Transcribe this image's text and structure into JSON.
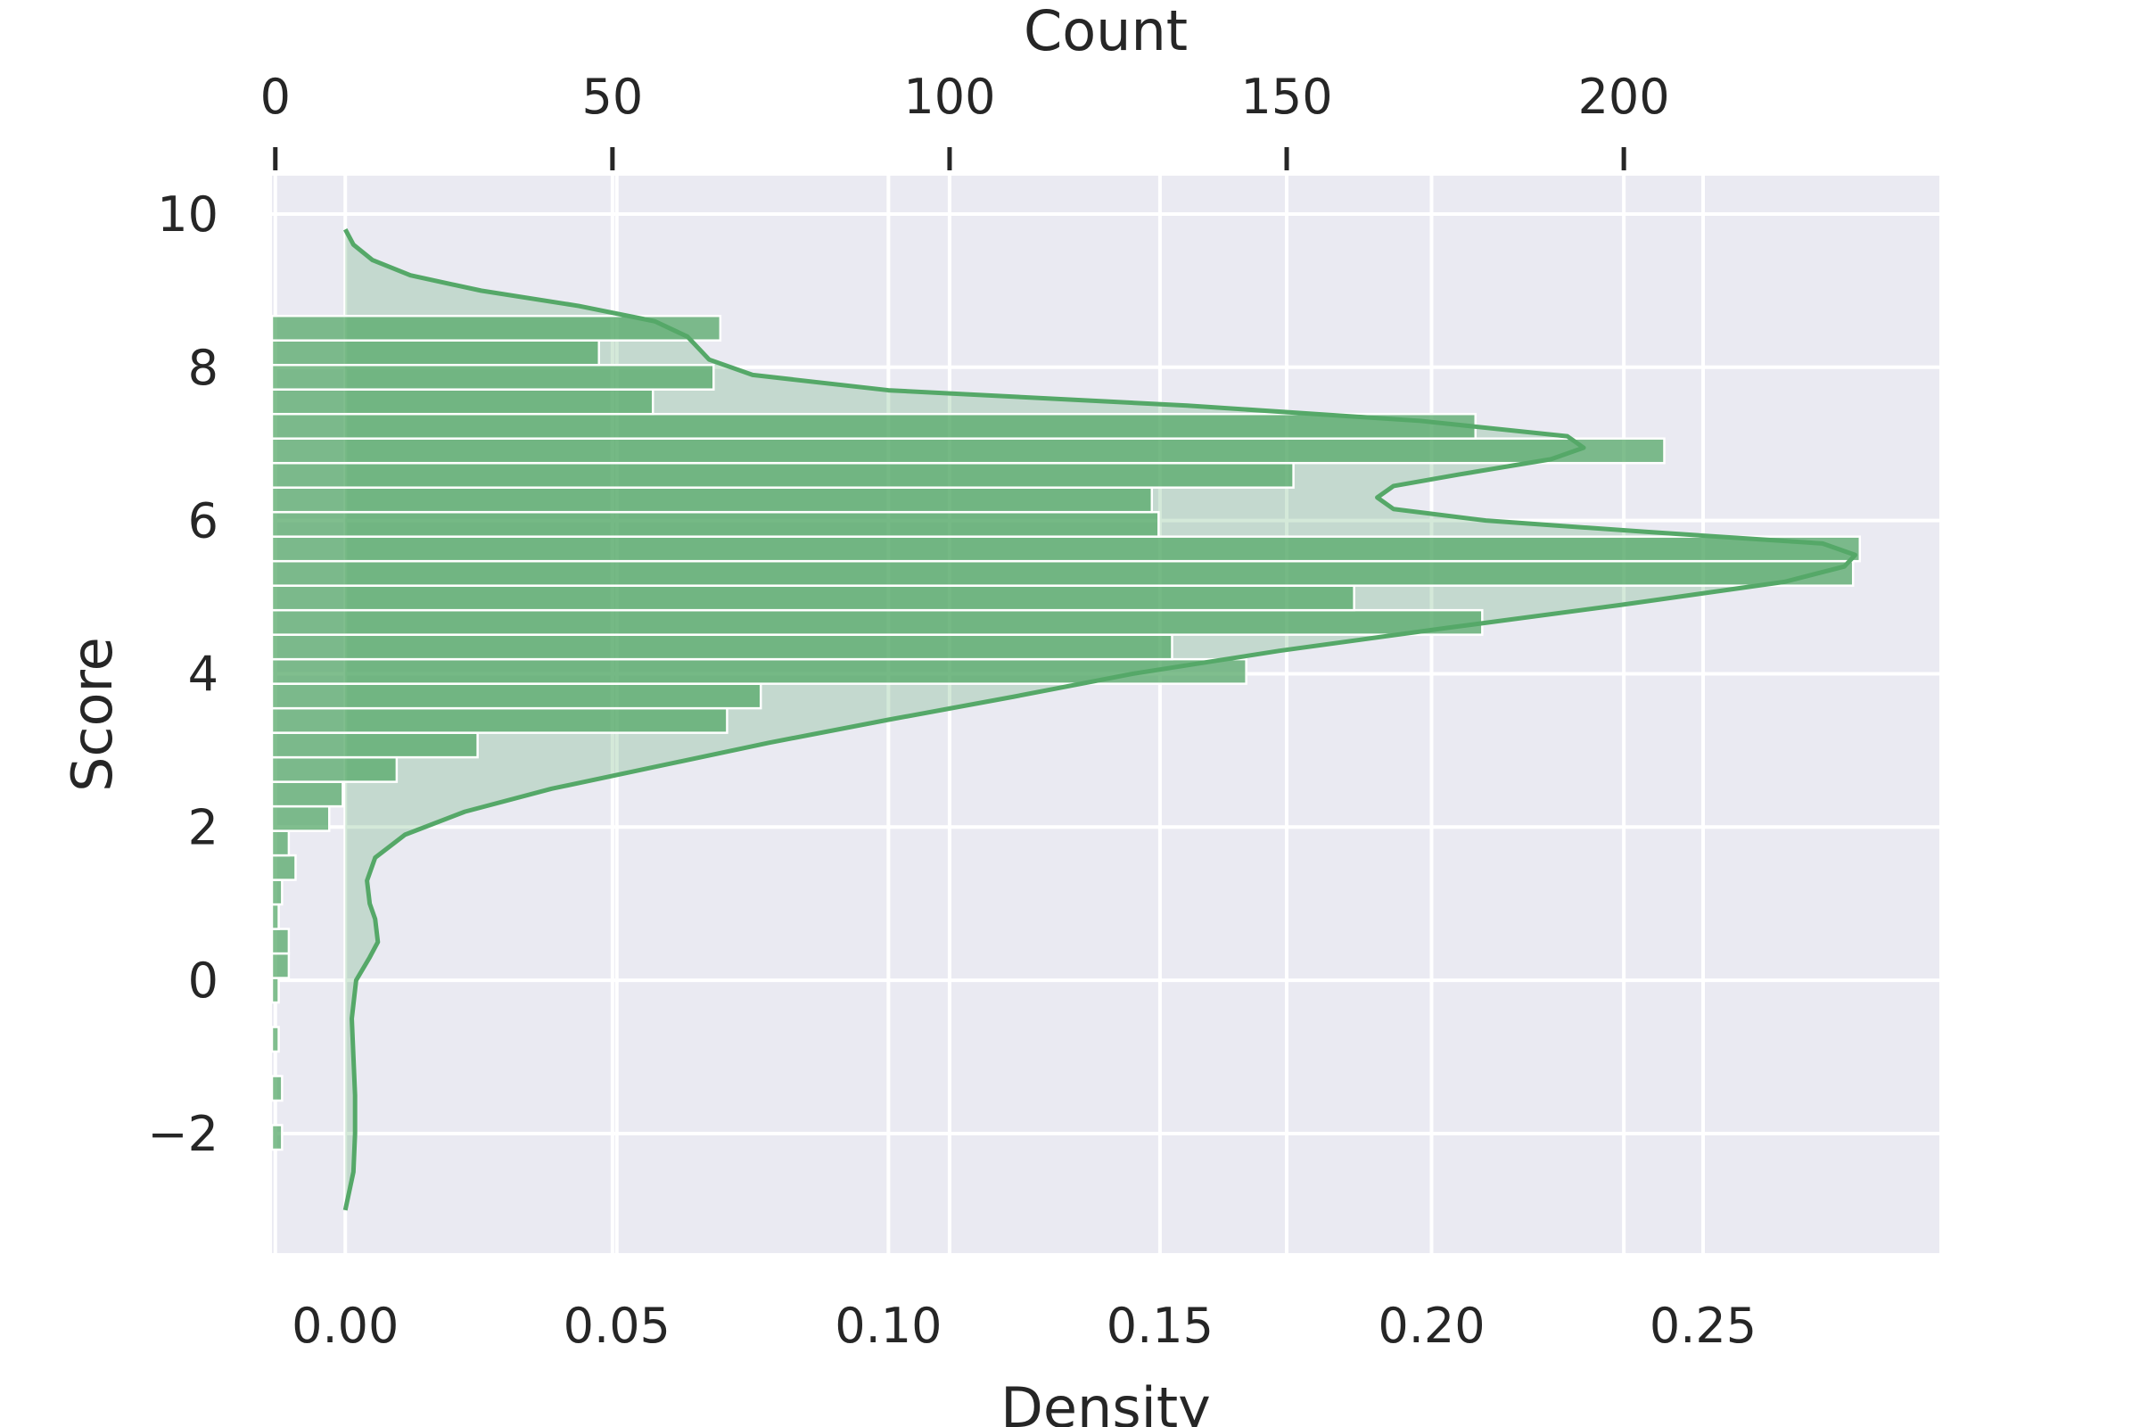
{
  "chart_data": {
    "type": "bar",
    "orientation": "horizontal",
    "title": "",
    "xlabel": "Density",
    "x2label": "Count",
    "ylabel": "Score",
    "grid": true,
    "background": "#eaeaf2",
    "gridColor": "#ffffff",
    "barColor": "#55a868",
    "kdeFillColor": "#55a868",
    "lineColor": "#55a868",
    "xlim": [
      -0.0135,
      0.2935
    ],
    "x2lim": [
      -0.5,
      246.8
    ],
    "ylim": [
      -3.56,
      10.5
    ],
    "xticks": [
      0.0,
      0.05,
      0.1,
      0.15,
      0.2,
      0.25
    ],
    "xticklabels": [
      "0.00",
      "0.05",
      "0.10",
      "0.15",
      "0.20",
      "0.25"
    ],
    "x2ticks": [
      0,
      50,
      100,
      150,
      200
    ],
    "x2ticklabels": [
      "0",
      "50",
      "100",
      "150",
      "200"
    ],
    "yticks": [
      -2,
      0,
      2,
      4,
      6,
      8,
      10
    ],
    "yticklabels": [
      "−2",
      "0",
      "2",
      "4",
      "6",
      "8",
      "10"
    ],
    "histogram": {
      "bin_width": 0.32,
      "bins": [
        {
          "from": -2.21,
          "to": -1.89,
          "count": 1
        },
        {
          "from": -1.57,
          "to": -1.25,
          "count": 1
        },
        {
          "from": -0.93,
          "to": -0.61,
          "count": 0.5
        },
        {
          "from": -0.29,
          "to": 0.03,
          "count": 0.5
        },
        {
          "from": 0.03,
          "to": 0.35,
          "count": 2
        },
        {
          "from": 0.35,
          "to": 0.67,
          "count": 2
        },
        {
          "from": 0.67,
          "to": 0.99,
          "count": 0.5
        },
        {
          "from": 0.99,
          "to": 1.31,
          "count": 1
        },
        {
          "from": 1.31,
          "to": 1.63,
          "count": 3
        },
        {
          "from": 1.63,
          "to": 1.95,
          "count": 2
        },
        {
          "from": 1.95,
          "to": 2.27,
          "count": 8
        },
        {
          "from": 2.27,
          "to": 2.59,
          "count": 10
        },
        {
          "from": 2.59,
          "to": 2.91,
          "count": 18
        },
        {
          "from": 2.91,
          "to": 3.23,
          "count": 30
        },
        {
          "from": 3.23,
          "to": 3.55,
          "count": 67
        },
        {
          "from": 3.55,
          "to": 3.87,
          "count": 72
        },
        {
          "from": 3.87,
          "to": 4.19,
          "count": 144
        },
        {
          "from": 4.19,
          "to": 4.51,
          "count": 133
        },
        {
          "from": 4.51,
          "to": 4.83,
          "count": 179
        },
        {
          "from": 4.83,
          "to": 5.15,
          "count": 160
        },
        {
          "from": 5.15,
          "to": 5.47,
          "count": 234
        },
        {
          "from": 5.47,
          "to": 5.79,
          "count": 235
        },
        {
          "from": 5.79,
          "to": 6.11,
          "count": 131
        },
        {
          "from": 6.11,
          "to": 6.43,
          "count": 130
        },
        {
          "from": 6.43,
          "to": 6.75,
          "count": 151
        },
        {
          "from": 6.75,
          "to": 7.07,
          "count": 206
        },
        {
          "from": 7.07,
          "to": 7.39,
          "count": 178
        },
        {
          "from": 7.39,
          "to": 7.71,
          "count": 56
        },
        {
          "from": 7.71,
          "to": 8.03,
          "count": 65
        },
        {
          "from": 8.03,
          "to": 8.35,
          "count": 48
        },
        {
          "from": 8.35,
          "to": 8.67,
          "count": 66
        }
      ]
    },
    "kde": {
      "series_label": "",
      "points": [
        [
          -3.0,
          0.0
        ],
        [
          -2.5,
          0.0015
        ],
        [
          -2.0,
          0.0018
        ],
        [
          -1.5,
          0.0018
        ],
        [
          -1.0,
          0.0015
        ],
        [
          -0.5,
          0.0012
        ],
        [
          0.0,
          0.002
        ],
        [
          0.3,
          0.0045
        ],
        [
          0.5,
          0.006
        ],
        [
          0.8,
          0.0055
        ],
        [
          1.0,
          0.0045
        ],
        [
          1.3,
          0.004
        ],
        [
          1.6,
          0.0055
        ],
        [
          1.9,
          0.011
        ],
        [
          2.2,
          0.022
        ],
        [
          2.5,
          0.038
        ],
        [
          2.8,
          0.058
        ],
        [
          3.1,
          0.078
        ],
        [
          3.4,
          0.1
        ],
        [
          3.7,
          0.123
        ],
        [
          4.0,
          0.145
        ],
        [
          4.3,
          0.172
        ],
        [
          4.6,
          0.203
        ],
        [
          4.9,
          0.235
        ],
        [
          5.2,
          0.265
        ],
        [
          5.4,
          0.276
        ],
        [
          5.55,
          0.278
        ],
        [
          5.7,
          0.272
        ],
        [
          5.85,
          0.24
        ],
        [
          6.0,
          0.21
        ],
        [
          6.15,
          0.193
        ],
        [
          6.3,
          0.19
        ],
        [
          6.45,
          0.193
        ],
        [
          6.6,
          0.205
        ],
        [
          6.8,
          0.222
        ],
        [
          6.95,
          0.228
        ],
        [
          7.1,
          0.225
        ],
        [
          7.3,
          0.198
        ],
        [
          7.5,
          0.155
        ],
        [
          7.7,
          0.1
        ],
        [
          7.9,
          0.075
        ],
        [
          8.1,
          0.067
        ],
        [
          8.4,
          0.063
        ],
        [
          8.6,
          0.057
        ],
        [
          8.8,
          0.043
        ],
        [
          9.0,
          0.025
        ],
        [
          9.2,
          0.012
        ],
        [
          9.4,
          0.005
        ],
        [
          9.6,
          0.0015
        ],
        [
          9.8,
          0.0
        ]
      ]
    }
  }
}
